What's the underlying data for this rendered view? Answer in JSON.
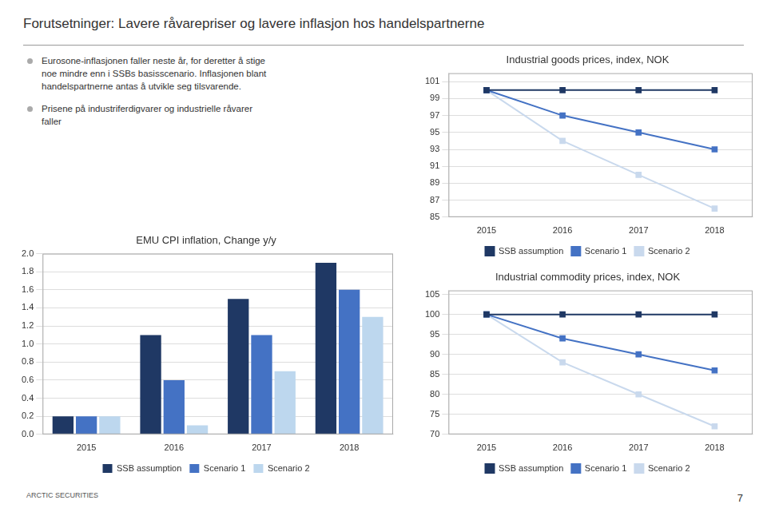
{
  "title": "Forutsetninger: Lavere råvarepriser og lavere inflasjon hos handelspartnerne",
  "bullets": [
    [
      "Eurosone-inflasjonen faller neste år, for deretter å stige",
      "noe mindre enn i SSBs basisscenario. Inflasjonen blant",
      "handelspartnerne antas å utvikle seg tilsvarende."
    ],
    [
      "Prisene på industriferdigvarer og industrielle råvarer",
      "faller"
    ]
  ],
  "footer": "ARCTIC SECURITIES",
  "page_number": "7",
  "chart_data": [
    {
      "type": "bar",
      "title": "EMU CPI inflation, Change y/y",
      "categories": [
        "2015",
        "2016",
        "2017",
        "2018"
      ],
      "series": [
        {
          "name": "SSB assumption",
          "color": "#1F3864",
          "values": [
            0.2,
            1.1,
            1.5,
            1.9
          ]
        },
        {
          "name": "Scenario 1",
          "color": "#4472C4",
          "values": [
            0.2,
            0.6,
            1.1,
            1.6
          ]
        },
        {
          "name": "Scenario 2",
          "color": "#BDD7EE",
          "values": [
            0.2,
            0.1,
            0.7,
            1.3
          ]
        }
      ],
      "ylim": [
        0.0,
        2.0
      ],
      "yticks": [
        {
          "value": 0,
          "label": "0.0"
        },
        0.2,
        0.4,
        0.6,
        0.8,
        {
          "value": 1,
          "label": "1.0"
        },
        1.2,
        1.4,
        1.6,
        1.8,
        {
          "value": 2,
          "label": "2.0"
        }
      ],
      "grid": true,
      "legend": "bottom"
    },
    {
      "type": "line",
      "title": "Industrial goods prices, index, NOK",
      "categories": [
        "2015",
        "2016",
        "2017",
        "2018"
      ],
      "series": [
        {
          "name": "SSB assumption",
          "color": "#1F3864",
          "marker": "square",
          "values": [
            100,
            100,
            100,
            100
          ]
        },
        {
          "name": "Scenario 1",
          "color": "#4472C4",
          "marker": "square",
          "values": [
            100,
            97,
            95,
            93
          ]
        },
        {
          "name": "Scenario 2",
          "color": "#C9D9ED",
          "marker": "square",
          "values": [
            100,
            94,
            90,
            86
          ]
        }
      ],
      "ylim": [
        85,
        102
      ],
      "yticks": [
        85,
        87,
        89,
        91,
        93,
        95,
        97,
        99,
        101
      ],
      "grid": true,
      "legend": "bottom"
    },
    {
      "type": "line",
      "title": "Industrial commodity prices, index, NOK",
      "categories": [
        "2015",
        "2016",
        "2017",
        "2018"
      ],
      "series": [
        {
          "name": "SSB assumption",
          "color": "#1F3864",
          "marker": "square",
          "values": [
            100,
            100,
            100,
            100
          ]
        },
        {
          "name": "Scenario 1",
          "color": "#4472C4",
          "marker": "square",
          "values": [
            100,
            94,
            90,
            86
          ]
        },
        {
          "name": "Scenario 2",
          "color": "#C9D9ED",
          "marker": "square",
          "values": [
            100,
            88,
            80,
            72
          ]
        }
      ],
      "ylim": [
        70,
        106
      ],
      "yticks": [
        70,
        75,
        80,
        85,
        90,
        95,
        100,
        105
      ],
      "grid": true,
      "legend": "bottom"
    }
  ]
}
